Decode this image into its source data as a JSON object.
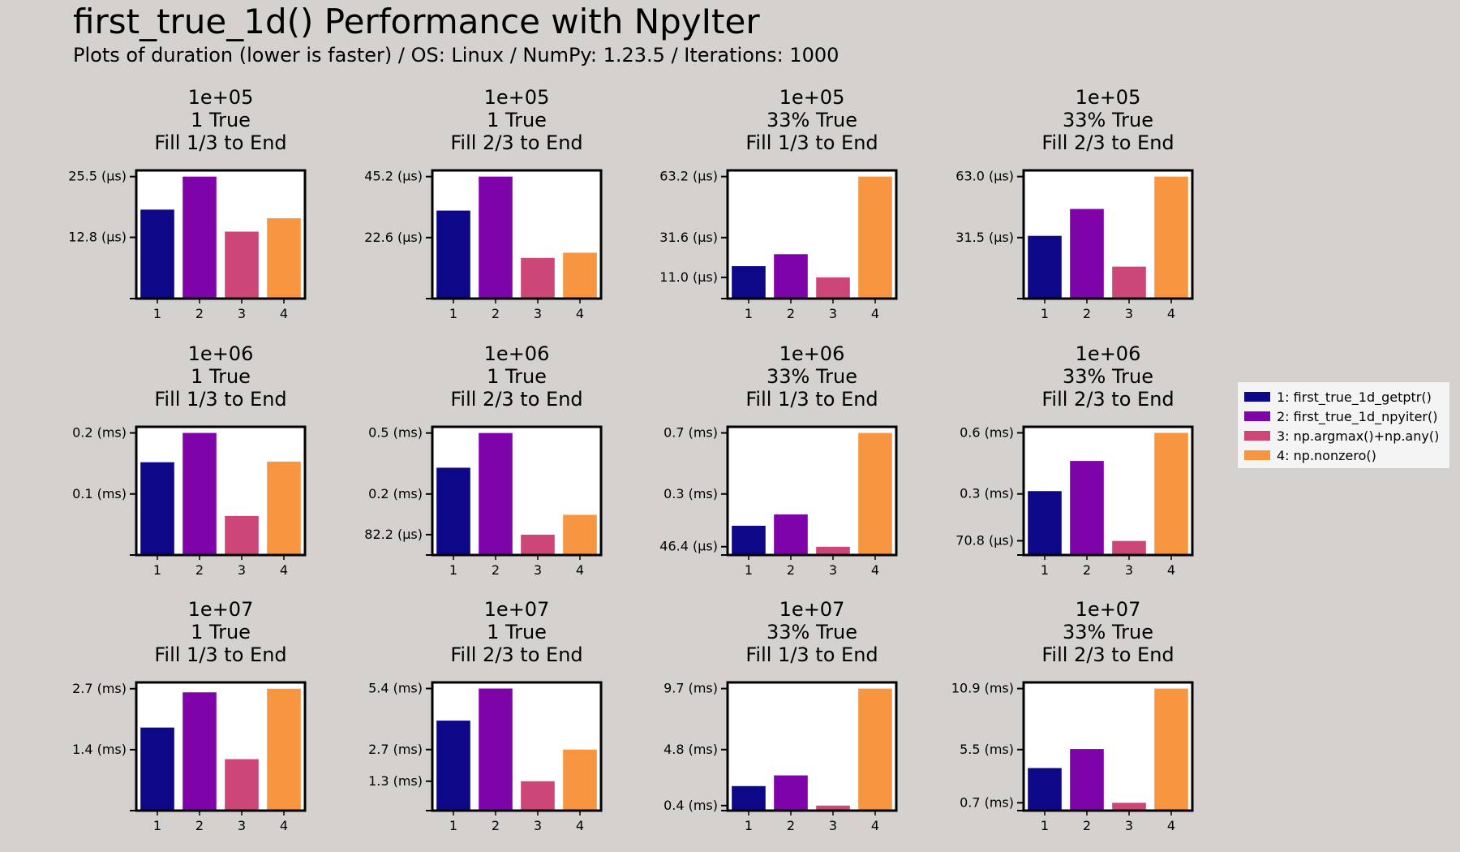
{
  "title": "first_true_1d() Performance with NpyIter",
  "subtitle": "Plots of duration (lower is faster) / OS: Linux / NumPy: 1.23.5 / Iterations: 1000",
  "colors": [
    "#0d0887",
    "#7e03a8",
    "#cc4778",
    "#f89540"
  ],
  "legend": [
    {
      "label": "1: first_true_1d_getptr()",
      "color": "#0d0887"
    },
    {
      "label": "2: first_true_1d_npyiter()",
      "color": "#7e03a8"
    },
    {
      "label": "3: np.argmax()+np.any()",
      "color": "#cc4778"
    },
    {
      "label": "4: np.nonzero()",
      "color": "#f89540"
    }
  ],
  "chart_data": [
    {
      "type": "bar",
      "title": [
        "1e+05",
        "1 True",
        "Fill 1/3 to End"
      ],
      "categories": [
        "1",
        "2",
        "3",
        "4"
      ],
      "unit": "µs",
      "values": [
        18.6,
        25.5,
        14.0,
        16.8
      ],
      "ylim": [
        0,
        26.8
      ],
      "yticks": [
        {
          "v": 0,
          "label": ""
        },
        {
          "v": 12.8,
          "label": "12.8 (µs)"
        },
        {
          "v": 25.5,
          "label": "25.5 (µs)"
        }
      ]
    },
    {
      "type": "bar",
      "title": [
        "1e+05",
        "1 True",
        "Fill 2/3 to End"
      ],
      "categories": [
        "1",
        "2",
        "3",
        "4"
      ],
      "unit": "µs",
      "values": [
        32.6,
        45.2,
        15.1,
        17.0
      ],
      "ylim": [
        0,
        47.5
      ],
      "yticks": [
        {
          "v": 0,
          "label": ""
        },
        {
          "v": 22.6,
          "label": "22.6 (µs)"
        },
        {
          "v": 45.2,
          "label": "45.2 (µs)"
        }
      ]
    },
    {
      "type": "bar",
      "title": [
        "1e+05",
        "33% True",
        "Fill 1/3 to End"
      ],
      "categories": [
        "1",
        "2",
        "3",
        "4"
      ],
      "unit": "µs",
      "values": [
        16.8,
        23.0,
        11.0,
        63.2
      ],
      "ylim": [
        0,
        66.4
      ],
      "yticks": [
        {
          "v": 0,
          "label": ""
        },
        {
          "v": 11.0,
          "label": "11.0 (µs)"
        },
        {
          "v": 31.6,
          "label": "31.6 (µs)"
        },
        {
          "v": 63.2,
          "label": "63.2 (µs)"
        }
      ]
    },
    {
      "type": "bar",
      "title": [
        "1e+05",
        "33% True",
        "Fill 2/3 to End"
      ],
      "categories": [
        "1",
        "2",
        "3",
        "4"
      ],
      "unit": "µs",
      "values": [
        32.4,
        46.3,
        16.5,
        63.0
      ],
      "ylim": [
        0,
        66.2
      ],
      "yticks": [
        {
          "v": 0,
          "label": ""
        },
        {
          "v": 31.5,
          "label": "31.5 (µs)"
        },
        {
          "v": 63.0,
          "label": "63.0 (µs)"
        }
      ]
    },
    {
      "type": "bar",
      "title": [
        "1e+06",
        "1 True",
        "Fill 1/3 to End"
      ],
      "categories": [
        "1",
        "2",
        "3",
        "4"
      ],
      "unit": "ms",
      "values": [
        0.152,
        0.2,
        0.064,
        0.153
      ],
      "ylim": [
        0,
        0.21
      ],
      "yticks": [
        {
          "v": 0,
          "label": ""
        },
        {
          "v": 0.1,
          "label": "0.1 (ms)"
        },
        {
          "v": 0.2,
          "label": "0.2 (ms)"
        }
      ]
    },
    {
      "type": "bar",
      "title": [
        "1e+06",
        "1 True",
        "Fill 2/3 to End"
      ],
      "categories": [
        "1",
        "2",
        "3",
        "4"
      ],
      "unit": "ms",
      "values": [
        0.352,
        0.492,
        0.082,
        0.162
      ],
      "ylim": [
        0,
        0.517
      ],
      "yticks": [
        {
          "v": 0,
          "label": ""
        },
        {
          "v": 0.0822,
          "label": "82.2 (µs)"
        },
        {
          "v": 0.246,
          "label": "0.2 (ms)"
        },
        {
          "v": 0.492,
          "label": "0.5 (ms)"
        }
      ]
    },
    {
      "type": "bar",
      "title": [
        "1e+06",
        "33% True",
        "Fill 1/3 to End"
      ],
      "categories": [
        "1",
        "2",
        "3",
        "4"
      ],
      "unit": "ms",
      "values": [
        0.163,
        0.226,
        0.046,
        0.68
      ],
      "ylim": [
        0,
        0.714
      ],
      "yticks": [
        {
          "v": 0,
          "label": ""
        },
        {
          "v": 0.0464,
          "label": "46.4 (µs)"
        },
        {
          "v": 0.34,
          "label": "0.3 (ms)"
        },
        {
          "v": 0.68,
          "label": "0.7 (ms)"
        }
      ]
    },
    {
      "type": "bar",
      "title": [
        "1e+06",
        "33% True",
        "Fill 2/3 to End"
      ],
      "categories": [
        "1",
        "2",
        "3",
        "4"
      ],
      "unit": "ms",
      "values": [
        0.318,
        0.468,
        0.07,
        0.608
      ],
      "ylim": [
        0,
        0.638
      ],
      "yticks": [
        {
          "v": 0,
          "label": ""
        },
        {
          "v": 0.0708,
          "label": "70.8 (µs)"
        },
        {
          "v": 0.304,
          "label": "0.3 (ms)"
        },
        {
          "v": 0.608,
          "label": "0.6 (ms)"
        }
      ]
    },
    {
      "type": "bar",
      "title": [
        "1e+07",
        "1 True",
        "Fill 1/3 to End"
      ],
      "categories": [
        "1",
        "2",
        "3",
        "4"
      ],
      "unit": "ms",
      "values": [
        1.84,
        2.62,
        1.14,
        2.7
      ],
      "ylim": [
        0,
        2.84
      ],
      "yticks": [
        {
          "v": 0,
          "label": ""
        },
        {
          "v": 1.35,
          "label": "1.4 (ms)"
        },
        {
          "v": 2.7,
          "label": "2.7 (ms)"
        }
      ]
    },
    {
      "type": "bar",
      "title": [
        "1e+07",
        "1 True",
        "Fill 2/3 to End"
      ],
      "categories": [
        "1",
        "2",
        "3",
        "4"
      ],
      "unit": "ms",
      "values": [
        3.98,
        5.4,
        1.3,
        2.7
      ],
      "ylim": [
        0,
        5.67
      ],
      "yticks": [
        {
          "v": 0,
          "label": ""
        },
        {
          "v": 1.3,
          "label": "1.3 (ms)"
        },
        {
          "v": 2.7,
          "label": "2.7 (ms)"
        },
        {
          "v": 5.4,
          "label": "5.4 (ms)"
        }
      ]
    },
    {
      "type": "bar",
      "title": [
        "1e+07",
        "33% True",
        "Fill 1/3 to End"
      ],
      "categories": [
        "1",
        "2",
        "3",
        "4"
      ],
      "unit": "ms",
      "values": [
        1.95,
        2.8,
        0.4,
        9.7
      ],
      "ylim": [
        0,
        10.19
      ],
      "yticks": [
        {
          "v": 0,
          "label": ""
        },
        {
          "v": 0.4,
          "label": "0.4 (ms)"
        },
        {
          "v": 4.85,
          "label": "4.8 (ms)"
        },
        {
          "v": 9.7,
          "label": "9.7 (ms)"
        }
      ]
    },
    {
      "type": "bar",
      "title": [
        "1e+07",
        "33% True",
        "Fill 2/3 to End"
      ],
      "categories": [
        "1",
        "2",
        "3",
        "4"
      ],
      "unit": "ms",
      "values": [
        3.8,
        5.5,
        0.7,
        10.9
      ],
      "ylim": [
        0,
        11.45
      ],
      "yticks": [
        {
          "v": 0,
          "label": ""
        },
        {
          "v": 0.7,
          "label": "0.7 (ms)"
        },
        {
          "v": 5.45,
          "label": "5.5 (ms)"
        },
        {
          "v": 10.9,
          "label": "10.9 (ms)"
        }
      ]
    }
  ]
}
